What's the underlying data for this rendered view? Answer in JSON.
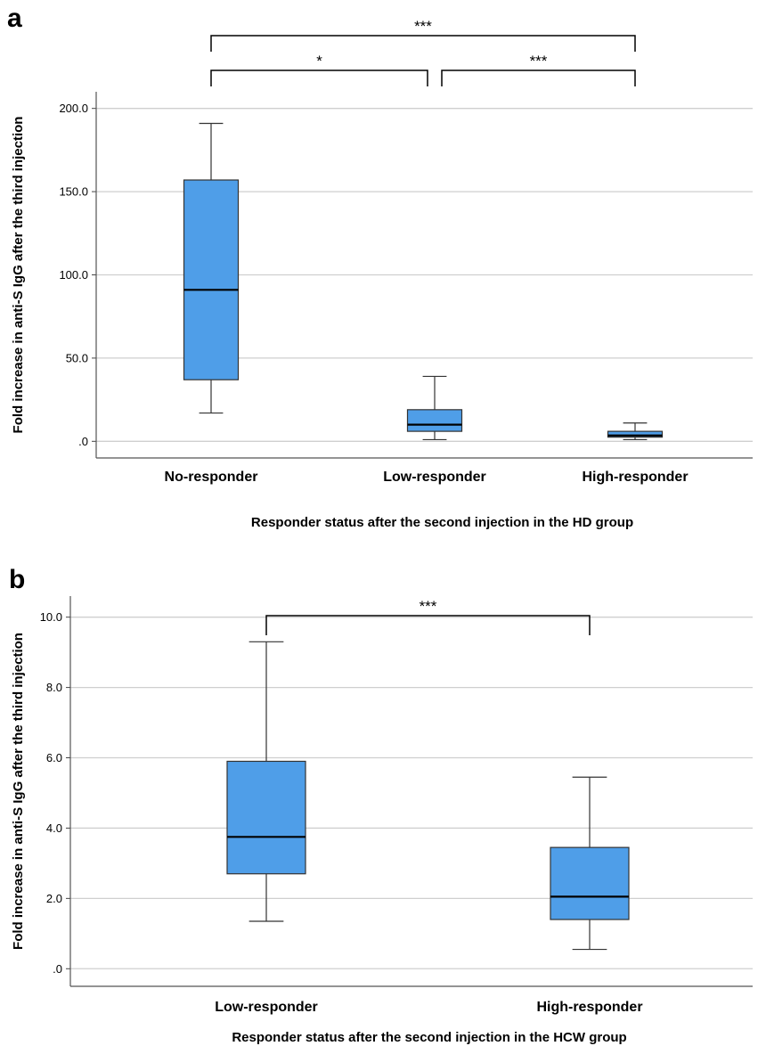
{
  "chart_data": [
    {
      "panel": "a",
      "type": "box",
      "xlabel": "Responder status after the second injection in the HD group",
      "ylabel": "Fold increase in anti-S IgG after the third injection",
      "ylim": [
        -10,
        210
      ],
      "yticks": [
        0,
        50,
        100,
        150,
        200
      ],
      "ytick_labels": [
        ".0",
        "50.0",
        "100.0",
        "150.0",
        "200.0"
      ],
      "grid": "horizontal",
      "box_color": "#4f9ee8",
      "categories": [
        "No-responder",
        "Low-responder",
        "High-responder"
      ],
      "boxes": [
        {
          "whisker_low": 17,
          "q1": 37,
          "median": 91,
          "q3": 157,
          "whisker_high": 191
        },
        {
          "whisker_low": 1,
          "q1": 6,
          "median": 10,
          "q3": 19,
          "whisker_high": 39
        },
        {
          "whisker_low": 1,
          "q1": 2.5,
          "median": 3.5,
          "q3": 6,
          "whisker_high": 11
        }
      ],
      "significance": [
        {
          "from": 0,
          "to": 2,
          "label": "***"
        },
        {
          "from": 0,
          "to": 1,
          "label": "*"
        },
        {
          "from": 1,
          "to": 2,
          "label": "***"
        }
      ]
    },
    {
      "panel": "b",
      "type": "box",
      "xlabel": "Responder status after the second injection in the HCW group",
      "ylabel": "Fold increase in anti-S IgG after the third injection",
      "ylim": [
        -0.5,
        10.6
      ],
      "yticks": [
        0,
        2,
        4,
        6,
        8,
        10
      ],
      "ytick_labels": [
        ".0",
        "2.0",
        "4.0",
        "6.0",
        "8.0",
        "10.0"
      ],
      "grid": "horizontal",
      "box_color": "#4f9ee8",
      "categories": [
        "Low-responder",
        "High-responder"
      ],
      "boxes": [
        {
          "whisker_low": 1.35,
          "q1": 2.7,
          "median": 3.75,
          "q3": 5.9,
          "whisker_high": 9.3
        },
        {
          "whisker_low": 0.55,
          "q1": 1.4,
          "median": 2.05,
          "q3": 3.45,
          "whisker_high": 5.45
        }
      ],
      "significance": [
        {
          "from": 0,
          "to": 1,
          "label": "***"
        }
      ]
    }
  ]
}
